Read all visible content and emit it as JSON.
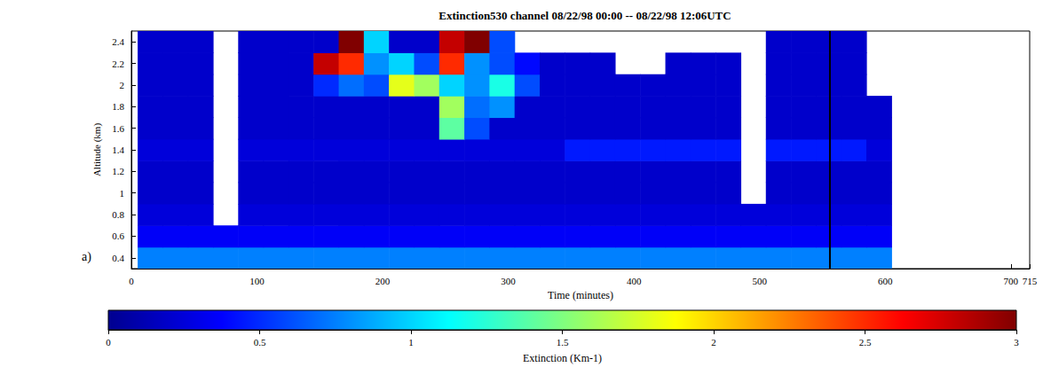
{
  "chart_data": {
    "type": "heatmap",
    "title": "Extinction530 channel 08/22/98 00:00 -- 08/22/98 12:06UTC",
    "panel_label": "a)",
    "x_label": "Time (minutes)",
    "y_label": "Altitude (km)",
    "x": [
      15,
      35,
      55,
      75,
      95,
      115,
      135,
      155,
      175,
      195,
      215,
      235,
      255,
      275,
      295,
      315,
      335,
      355,
      375,
      395,
      415,
      435,
      455,
      475,
      495,
      515,
      535,
      555,
      575,
      595
    ],
    "y": [
      0.4,
      0.6,
      0.8,
      1.0,
      1.2,
      1.4,
      1.6,
      1.8,
      2.0,
      2.2,
      2.4
    ],
    "values": [
      [
        0.75,
        0.75,
        0.75,
        0.75,
        0.75,
        0.75,
        0.75,
        0.75,
        0.75,
        0.75,
        0.75,
        0.75,
        0.75,
        0.75,
        0.75,
        0.75,
        0.75,
        0.75,
        0.75,
        0.75,
        0.75,
        0.75,
        0.75,
        0.75,
        0.75,
        0.75,
        0.75,
        0.75,
        0.75,
        0.75
      ],
      [
        0.35,
        0.35,
        0.35,
        0.35,
        0.35,
        0.35,
        0.35,
        0.35,
        0.35,
        0.35,
        0.35,
        0.35,
        0.35,
        0.35,
        0.35,
        0.35,
        0.35,
        0.35,
        0.35,
        0.35,
        0.35,
        0.35,
        0.35,
        0.35,
        0.35,
        0.35,
        0.35,
        0.35,
        0.35,
        0.35
      ],
      [
        0.25,
        0.25,
        0.25,
        null,
        0.25,
        0.25,
        0.25,
        0.25,
        0.25,
        0.25,
        0.25,
        0.25,
        0.25,
        0.25,
        0.25,
        0.25,
        0.25,
        0.25,
        0.25,
        0.25,
        0.25,
        0.25,
        0.25,
        0.25,
        0.25,
        0.25,
        0.25,
        0.25,
        0.25,
        0.25
      ],
      [
        0.2,
        0.2,
        0.2,
        null,
        0.2,
        0.2,
        0.2,
        0.2,
        0.2,
        0.2,
        0.2,
        0.2,
        0.2,
        0.2,
        0.2,
        0.2,
        0.2,
        0.2,
        0.2,
        0.2,
        0.2,
        0.2,
        0.2,
        0.2,
        null,
        0.2,
        0.2,
        0.2,
        0.2,
        0.2
      ],
      [
        0.2,
        0.2,
        0.2,
        null,
        0.2,
        0.2,
        0.2,
        0.2,
        0.2,
        0.2,
        0.2,
        0.2,
        0.2,
        0.2,
        0.2,
        0.2,
        0.2,
        0.2,
        0.2,
        0.2,
        0.2,
        0.2,
        0.2,
        0.2,
        null,
        0.2,
        0.2,
        0.2,
        0.2,
        0.2
      ],
      [
        0.25,
        0.25,
        0.25,
        null,
        0.25,
        0.25,
        0.25,
        0.25,
        0.25,
        0.25,
        0.25,
        0.25,
        0.25,
        0.25,
        0.25,
        0.25,
        0.25,
        0.45,
        0.45,
        0.45,
        0.45,
        0.45,
        0.45,
        0.45,
        null,
        0.45,
        0.45,
        0.45,
        0.45,
        0.25
      ],
      [
        0.2,
        0.2,
        0.2,
        null,
        0.2,
        0.2,
        0.2,
        0.2,
        0.2,
        0.2,
        0.2,
        0.2,
        1.4,
        0.6,
        0.2,
        0.2,
        0.2,
        0.2,
        0.2,
        0.2,
        0.2,
        0.2,
        0.2,
        0.2,
        null,
        0.2,
        0.2,
        0.2,
        0.2,
        0.2
      ],
      [
        0.2,
        0.2,
        0.2,
        null,
        0.2,
        0.2,
        0.2,
        0.2,
        0.2,
        0.2,
        0.2,
        0.2,
        1.6,
        0.7,
        0.8,
        0.2,
        0.2,
        0.2,
        0.2,
        0.2,
        0.2,
        0.2,
        0.2,
        0.2,
        null,
        0.2,
        0.2,
        0.2,
        0.2,
        0.2
      ],
      [
        0.2,
        0.2,
        0.2,
        null,
        0.2,
        0.2,
        0.2,
        0.5,
        0.7,
        0.6,
        1.8,
        1.6,
        1.0,
        0.8,
        1.2,
        0.6,
        0.2,
        0.2,
        0.2,
        0.2,
        0.2,
        0.2,
        0.2,
        0.2,
        null,
        0.2,
        0.2,
        0.2,
        0.2,
        null
      ],
      [
        0.2,
        0.2,
        0.2,
        null,
        0.2,
        0.2,
        0.2,
        2.8,
        2.5,
        0.8,
        1.0,
        0.6,
        2.5,
        0.8,
        0.6,
        0.4,
        0.2,
        0.2,
        0.2,
        null,
        null,
        0.2,
        0.2,
        0.2,
        null,
        0.2,
        0.2,
        0.2,
        0.2,
        null
      ],
      [
        0.2,
        0.2,
        0.2,
        null,
        0.2,
        0.2,
        0.2,
        0.2,
        3.0,
        1.0,
        0.2,
        0.2,
        2.8,
        3.0,
        0.6,
        null,
        null,
        null,
        null,
        null,
        null,
        null,
        null,
        null,
        null,
        0.2,
        0.2,
        0.2,
        0.2,
        null
      ]
    ],
    "xlim": [
      0,
      715
    ],
    "xticks": [
      0,
      100,
      200,
      300,
      400,
      500,
      600,
      700
    ],
    "ylim": [
      0.3,
      2.5
    ],
    "yticks": [
      0.4,
      0.6,
      0.8,
      1,
      1.2,
      1.4,
      1.6,
      1.8,
      2,
      2.2,
      2.4
    ],
    "marker_x": 556,
    "colorbar": {
      "label": "Extinction (Km-1)",
      "range": [
        0,
        3
      ],
      "ticks": [
        0,
        0.5,
        1,
        1.5,
        2,
        2.5,
        3
      ]
    },
    "grid": false
  }
}
